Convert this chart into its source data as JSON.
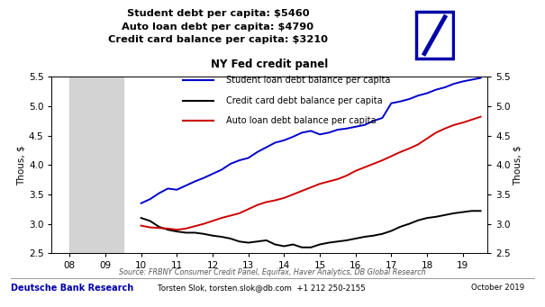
{
  "title_lines": "Student debt per capita: $5460\nAuto loan debt per capita: $4790\nCredit card balance per capita: $3210",
  "chart_title": "NY Fed credit panel",
  "ylabel_left": "Thous, $",
  "ylabel_right": "Thous, $",
  "ylim": [
    2.5,
    5.5
  ],
  "yticks": [
    2.5,
    3.0,
    3.5,
    4.0,
    4.5,
    5.0,
    5.5
  ],
  "xlim_display": [
    7.5,
    19.7
  ],
  "xticks": [
    8,
    9,
    10,
    11,
    12,
    13,
    14,
    15,
    16,
    17,
    18,
    19
  ],
  "xticklabels": [
    "08",
    "09",
    "10",
    "11",
    "12",
    "13",
    "14",
    "15",
    "16",
    "17",
    "18",
    "19"
  ],
  "recession_shade": [
    8.0,
    9.5
  ],
  "source_text": "Source: FRBNY Consumer Credit Panel, Equifax, Haver Analytics, DB Global Research",
  "footer_left": "Deutsche Bank Research",
  "footer_right": "October 2019",
  "footer_contact": "Torsten Slok, torsten.slok@db.com  +1 212 250-2155",
  "background_color": "#ffffff",
  "shade_color": "#d3d3d3",
  "legend_entries": [
    "Student loan debt balance per capita",
    "Credit card debt balance per capita",
    "Auto loan debt balance per capita"
  ],
  "legend_colors": [
    "#0000cc",
    "#000000",
    "#cc0000"
  ],
  "student_x": [
    10.0,
    10.25,
    10.5,
    10.75,
    11.0,
    11.25,
    11.5,
    11.75,
    12.0,
    12.25,
    12.5,
    12.75,
    13.0,
    13.25,
    13.5,
    13.75,
    14.0,
    14.25,
    14.5,
    14.75,
    15.0,
    15.25,
    15.5,
    15.75,
    16.0,
    16.25,
    16.5,
    16.75,
    17.0,
    17.25,
    17.5,
    17.75,
    18.0,
    18.25,
    18.5,
    18.75,
    19.0,
    19.25,
    19.5
  ],
  "student_y": [
    3.35,
    3.42,
    3.52,
    3.6,
    3.58,
    3.65,
    3.72,
    3.78,
    3.85,
    3.92,
    4.02,
    4.08,
    4.12,
    4.22,
    4.3,
    4.38,
    4.42,
    4.48,
    4.55,
    4.58,
    4.52,
    4.55,
    4.6,
    4.62,
    4.65,
    4.68,
    4.75,
    4.8,
    5.05,
    5.08,
    5.12,
    5.18,
    5.22,
    5.28,
    5.32,
    5.38,
    5.42,
    5.45,
    5.48
  ],
  "auto_x": [
    10.0,
    10.25,
    10.5,
    10.75,
    11.0,
    11.25,
    11.5,
    11.75,
    12.0,
    12.25,
    12.5,
    12.75,
    13.0,
    13.25,
    13.5,
    13.75,
    14.0,
    14.25,
    14.5,
    14.75,
    15.0,
    15.25,
    15.5,
    15.75,
    16.0,
    16.25,
    16.5,
    16.75,
    17.0,
    17.25,
    17.5,
    17.75,
    18.0,
    18.25,
    18.5,
    18.75,
    19.0,
    19.25,
    19.5
  ],
  "auto_y": [
    2.97,
    2.94,
    2.93,
    2.92,
    2.9,
    2.92,
    2.96,
    3.0,
    3.05,
    3.1,
    3.14,
    3.18,
    3.25,
    3.32,
    3.37,
    3.4,
    3.44,
    3.5,
    3.56,
    3.62,
    3.68,
    3.72,
    3.76,
    3.82,
    3.9,
    3.96,
    4.02,
    4.08,
    4.15,
    4.22,
    4.28,
    4.35,
    4.45,
    4.55,
    4.62,
    4.68,
    4.72,
    4.77,
    4.82
  ],
  "card_x": [
    10.0,
    10.25,
    10.5,
    10.75,
    11.0,
    11.25,
    11.5,
    11.75,
    12.0,
    12.25,
    12.5,
    12.75,
    13.0,
    13.25,
    13.5,
    13.75,
    14.0,
    14.25,
    14.5,
    14.75,
    15.0,
    15.25,
    15.5,
    15.75,
    16.0,
    16.25,
    16.5,
    16.75,
    17.0,
    17.25,
    17.5,
    17.75,
    18.0,
    18.25,
    18.5,
    18.75,
    19.0,
    19.25,
    19.5
  ],
  "card_y": [
    3.1,
    3.05,
    2.95,
    2.9,
    2.87,
    2.85,
    2.85,
    2.83,
    2.8,
    2.78,
    2.75,
    2.7,
    2.68,
    2.7,
    2.72,
    2.65,
    2.62,
    2.65,
    2.6,
    2.6,
    2.65,
    2.68,
    2.7,
    2.72,
    2.75,
    2.78,
    2.8,
    2.83,
    2.88,
    2.95,
    3.0,
    3.06,
    3.1,
    3.12,
    3.15,
    3.18,
    3.2,
    3.22,
    3.22
  ],
  "db_logo_color": "#0000aa"
}
